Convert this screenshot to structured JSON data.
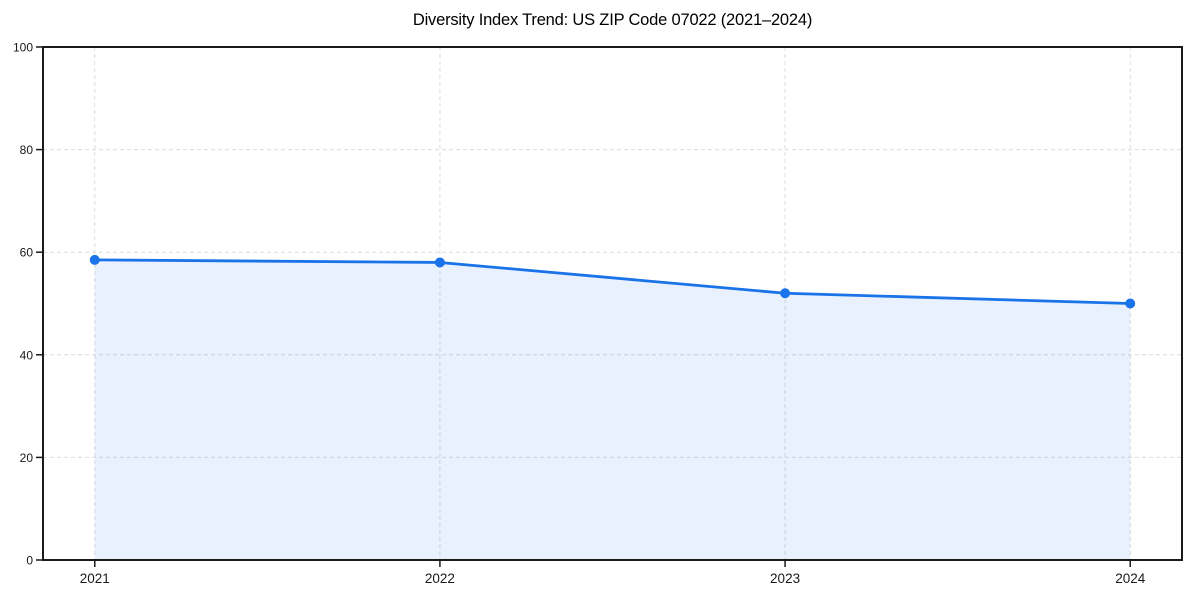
{
  "page": {
    "background": "#ffffff"
  },
  "chart_data": {
    "type": "line",
    "title": "Diversity Index Trend: US ZIP Code 07022 (2021–2024)",
    "x": [
      2021,
      2022,
      2023,
      2024
    ],
    "series": [
      {
        "name": "Diversity Index",
        "values": [
          58.5,
          58,
          52,
          50
        ]
      }
    ],
    "xlabel": "",
    "ylabel": "",
    "xlim": [
      2020.85,
      2024.15
    ],
    "ylim": [
      0,
      100
    ],
    "yticks": [
      0,
      20,
      40,
      60,
      80,
      100
    ],
    "xticks": [
      2021,
      2022,
      2023,
      2024
    ],
    "grid": true,
    "grid_style": "dashed",
    "legend_position": "none",
    "marker": "circle",
    "line_color": "#1a73e8",
    "marker_color": "#1a73e8",
    "fill_color": "rgba(26,115,232,0.10)",
    "grid_color": "#dcdcdc",
    "axis_color": "#1a1a1a",
    "tick_label_color": "#1a1a1a",
    "title_color": "#000000"
  }
}
